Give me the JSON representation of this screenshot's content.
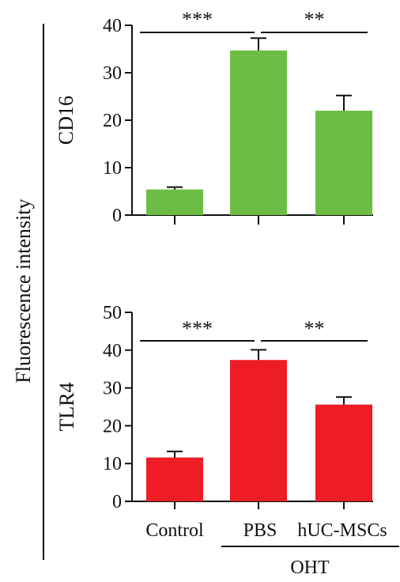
{
  "ylabel": "Fluorescence intensity",
  "group_label": "OHT",
  "chart_data": [
    {
      "type": "bar",
      "ylabel": "CD16",
      "categories": [
        "Control",
        "PBS",
        "hUC-MSCs"
      ],
      "values": [
        5.4,
        34.7,
        22.0
      ],
      "errors": [
        0.5,
        2.6,
        3.2
      ],
      "ylim": [
        0,
        40
      ],
      "yticks": [
        0,
        10,
        20,
        30,
        40
      ],
      "color": "#6cbd45",
      "significance": [
        {
          "from": 0,
          "to": 1,
          "label": "***"
        },
        {
          "from": 1,
          "to": 2,
          "label": "**"
        }
      ]
    },
    {
      "type": "bar",
      "ylabel": "TLR4",
      "categories": [
        "Control",
        "PBS",
        "hUC-MSCs"
      ],
      "values": [
        11.6,
        37.4,
        25.6
      ],
      "errors": [
        1.6,
        2.7,
        2.0
      ],
      "ylim": [
        0,
        50
      ],
      "yticks": [
        0,
        10,
        20,
        30,
        40,
        50
      ],
      "color": "#ee1c25",
      "significance": [
        {
          "from": 0,
          "to": 1,
          "label": "***"
        },
        {
          "from": 1,
          "to": 2,
          "label": "**"
        }
      ]
    }
  ]
}
